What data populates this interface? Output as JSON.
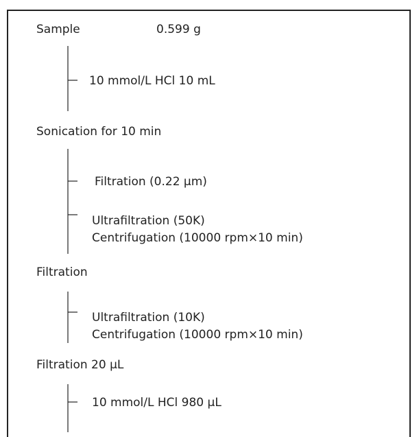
{
  "steps": [
    {
      "label": "Sample",
      "amount": "0.599 g"
    },
    {
      "label": "Sonication for 10 min"
    },
    {
      "label": "Filtration"
    },
    {
      "label": "Filtration 20 µL"
    }
  ],
  "treatments": [
    {
      "lines": [
        "10 mmol/L HCl 10 mL"
      ]
    },
    {
      "lines": [
        "Filtration (0.22 µm)"
      ]
    },
    {
      "lines": [
        "Ultrafiltration (50K)",
        "Centrifugation (10000 rpm×10 min)"
      ]
    },
    {
      "lines": [
        "Ultrafiltration (10K)",
        "Centrifugation (10000 rpm×10 min)"
      ]
    },
    {
      "lines": [
        "10 mmol/L HCl 980 µL"
      ]
    }
  ]
}
